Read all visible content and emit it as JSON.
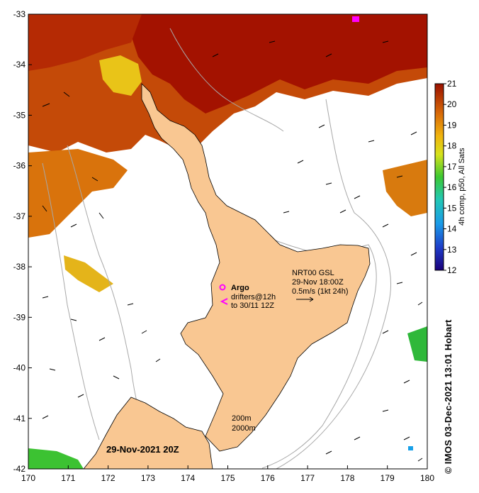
{
  "map": {
    "x_ticks": [
      "170",
      "171",
      "172",
      "173",
      "174",
      "175",
      "176",
      "177",
      "178",
      "179",
      "180"
    ],
    "y_ticks": [
      "-33",
      "-34",
      "-35",
      "-36",
      "-37",
      "-38",
      "-39",
      "-40",
      "-41",
      "-42"
    ],
    "lon_range": [
      170,
      180
    ],
    "lat_range": [
      -42,
      -33
    ],
    "date_label": "29-Nov-2021 20Z",
    "argo_label": "Argo",
    "drifters_label": "drifters@12h",
    "drifters_to_label": "to 30/11 12Z",
    "current_title": "NRT00 GSL",
    "current_time": "29-Nov 18:00Z",
    "current_scale": "0.5m/s (1kt 24h)",
    "contour_200": "200m",
    "contour_2000": "2000m"
  },
  "colorbar": {
    "ticks": [
      "21",
      "20",
      "19",
      "18",
      "17",
      "16",
      "15",
      "14",
      "13",
      "12"
    ],
    "range": [
      12,
      21
    ],
    "label": "4h comp, p50, All Sats"
  },
  "credit": "© IMOS 03-Dec-2021 13:01 Hobart",
  "colors": {
    "land": "#f9c792",
    "sst_hot": "#a31200",
    "sst_warm": "#c84a06",
    "sst_mid": "#e08a10",
    "sst_yellow": "#e9c418",
    "sst_green": "#3fc23a",
    "argo_marker": "#ff00ff"
  }
}
